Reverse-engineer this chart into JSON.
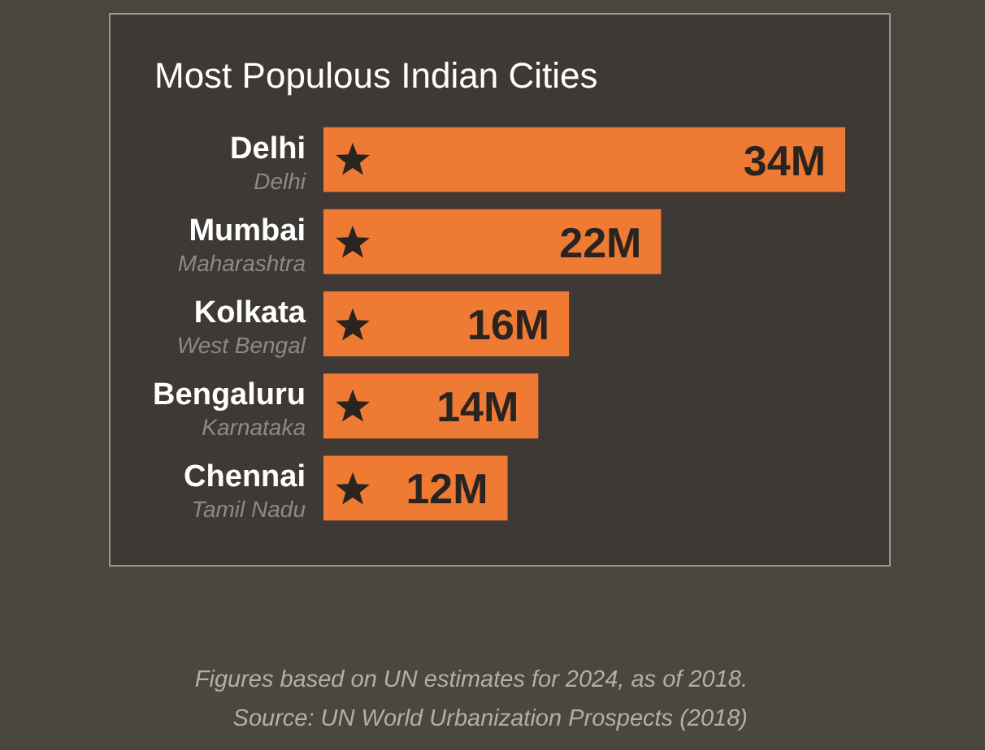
{
  "chart_data": {
    "type": "bar",
    "orientation": "horizontal",
    "title": "Most Populous Indian Cities",
    "categories": [
      "Delhi\nDelhi",
      "Mumbai\nMaharashtra",
      "Kolkata\nWest Bengal",
      "Bengaluru\nKarnataka",
      "Chennai\nTamil Nadu"
    ],
    "values": [
      34,
      22,
      16,
      14,
      12
    ],
    "value_labels": [
      "34M",
      "22M",
      "16M",
      "14M",
      "12M"
    ],
    "color": "#ef7a33",
    "tick_labels": "y",
    "annotations": [
      "Figures based on UN estimates for 2024, as of 2018.",
      "Source: UN World Urbanization Prospects (2018)"
    ]
  }
}
